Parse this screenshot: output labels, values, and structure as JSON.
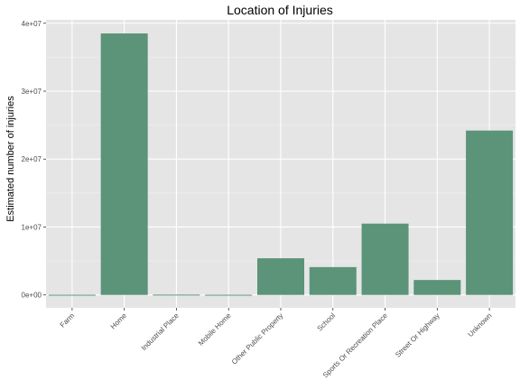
{
  "chart_data": {
    "type": "bar",
    "title": "Location of Injuries",
    "xlabel": "",
    "ylabel": "Estimated number of injuries",
    "categories": [
      "Farm",
      "Home",
      "Industrial Place",
      "Mobile Home",
      "Other Public Property",
      "School",
      "Sports Or Recreation Place",
      "Street Or Highway",
      "Unknown"
    ],
    "values": [
      30000,
      38500000,
      50000,
      30000,
      5400000,
      4100000,
      10500000,
      2200000,
      24200000
    ],
    "ylim": [
      -1900000,
      40500000
    ],
    "yticks": [
      0,
      10000000,
      20000000,
      30000000,
      40000000
    ],
    "ytick_labels": [
      "0e+00",
      "1e+07",
      "2e+07",
      "3e+07",
      "4e+07"
    ],
    "bar_color": "#5b9479",
    "panel_color": "#e5e5e5",
    "grid": true,
    "legend": "none"
  }
}
